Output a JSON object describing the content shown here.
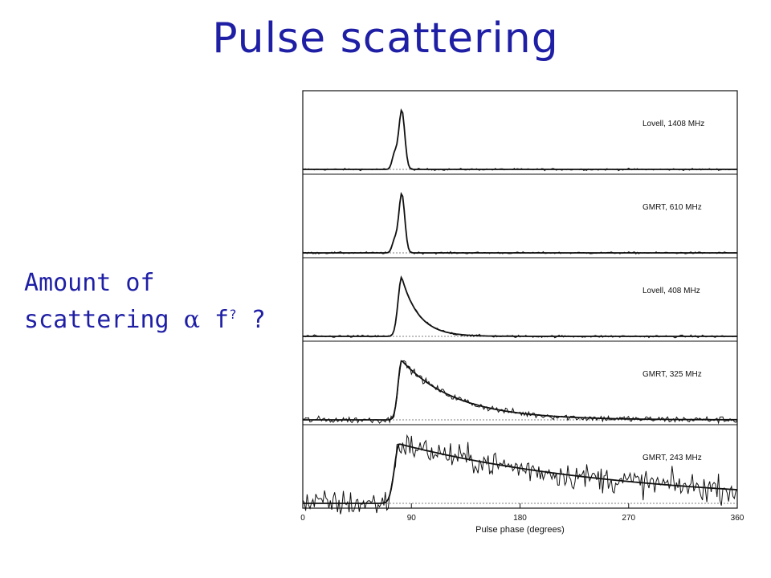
{
  "slide": {
    "title": "Pulse scattering",
    "side_line1": "Amount of",
    "side_line2_a": "scattering",
    "side_line2_alpha": "α",
    "side_line2_f": "f",
    "side_line2_exp": "?",
    "side_line2_q": "?"
  },
  "colors": {
    "title": "#1f1fa6",
    "trace": "#111111",
    "baseline": "#555555"
  },
  "chart_data": {
    "type": "line",
    "xlabel": "Pulse phase (degrees)",
    "ylabel": "",
    "xlim": [
      0,
      360
    ],
    "xticks": [
      0,
      90,
      180,
      270,
      360
    ],
    "grid": false,
    "panels": [
      {
        "label": "Lovell, 1408 MHz",
        "peak_phase": 82,
        "width": 2.5,
        "tau": 0,
        "noise": 0.012,
        "pre_bump": 0.25
      },
      {
        "label": "GMRT, 610 MHz",
        "peak_phase": 82,
        "width": 2.5,
        "tau": 0,
        "noise": 0.012,
        "pre_bump": 0.2
      },
      {
        "label": "Lovell, 408 MHz",
        "peak_phase": 82,
        "width": 3,
        "tau": 14,
        "noise": 0.015,
        "pre_bump": 0
      },
      {
        "label": "GMRT, 325 MHz",
        "peak_phase": 82,
        "width": 3,
        "tau": 45,
        "noise": 0.04,
        "pre_bump": 0
      },
      {
        "label": "GMRT, 243 MHz",
        "peak_phase": 80,
        "width": 4,
        "tau": 190,
        "noise": 0.16,
        "pre_bump": 0
      }
    ]
  }
}
